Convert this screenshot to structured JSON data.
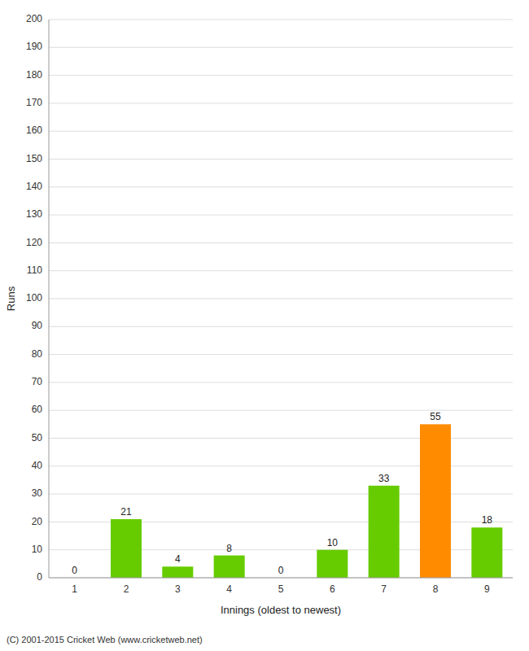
{
  "chart_data": {
    "type": "bar",
    "xlabel": "Innings (oldest to newest)",
    "ylabel": "Runs",
    "categories": [
      "1",
      "2",
      "3",
      "4",
      "5",
      "6",
      "7",
      "8",
      "9"
    ],
    "values": [
      0,
      21,
      4,
      8,
      0,
      10,
      33,
      55,
      18
    ],
    "colors": [
      "#66cc00",
      "#66cc00",
      "#66cc00",
      "#66cc00",
      "#66cc00",
      "#66cc00",
      "#66cc00",
      "#ff8c00",
      "#66cc00"
    ],
    "ylim": [
      0,
      200
    ],
    "yticks": [
      0,
      10,
      20,
      30,
      40,
      50,
      60,
      70,
      80,
      90,
      100,
      110,
      120,
      130,
      140,
      150,
      160,
      170,
      180,
      190,
      200
    ],
    "grid": true,
    "data_labels": true,
    "annotations": [
      "(C) 2001-2015 Cricket Web (www.cricketweb.net)"
    ]
  }
}
